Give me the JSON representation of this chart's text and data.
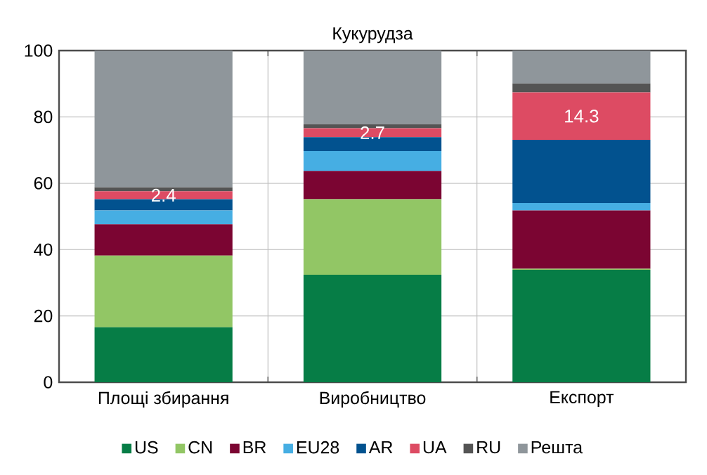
{
  "chart_data": {
    "type": "bar",
    "title": "Кукурудза",
    "stacked": true,
    "categories": [
      "Площі  збирання",
      "Виробництво",
      "Експорт"
    ],
    "series": [
      {
        "name": "US",
        "color": "#067d46",
        "values": [
          16.6,
          32.4,
          33.9
        ]
      },
      {
        "name": "CN",
        "color": "#92c665",
        "values": [
          21.6,
          22.8,
          0.3
        ]
      },
      {
        "name": "BR",
        "color": "#7b0532",
        "values": [
          9.4,
          8.5,
          17.6
        ]
      },
      {
        "name": "EU28",
        "color": "#46aee3",
        "values": [
          4.2,
          6.0,
          2.2
        ]
      },
      {
        "name": "AR",
        "color": "#02528f",
        "values": [
          3.4,
          4.2,
          19.1
        ]
      },
      {
        "name": "UA",
        "color": "#dd4b63",
        "values": [
          2.4,
          2.7,
          14.3
        ],
        "value_labels": [
          "2.4",
          "2.7",
          "14.3"
        ]
      },
      {
        "name": "RU",
        "color": "#545454",
        "values": [
          1.2,
          1.2,
          2.7
        ]
      },
      {
        "name": "Решта",
        "color": "#8f969b",
        "values": [
          41.2,
          22.2,
          9.9
        ]
      }
    ],
    "ylim": [
      0,
      100
    ],
    "yticks": [
      0,
      20,
      40,
      60,
      80,
      100
    ],
    "grid": true,
    "legend": "bottom"
  }
}
